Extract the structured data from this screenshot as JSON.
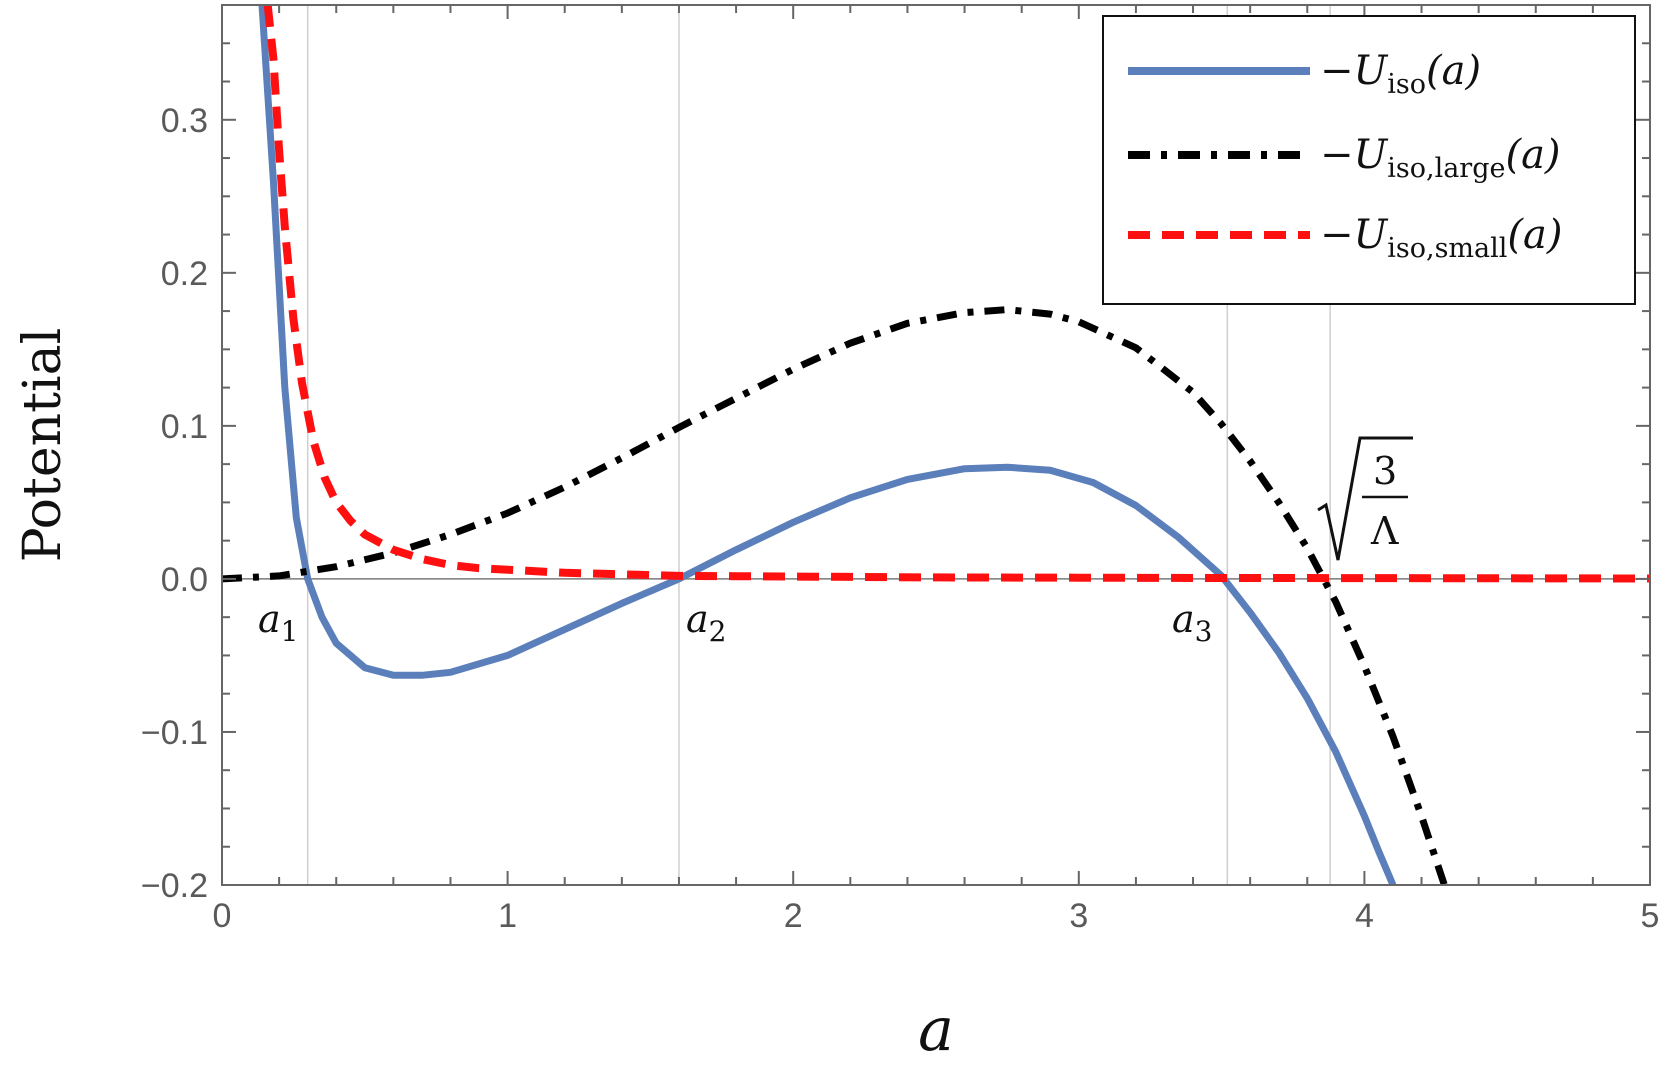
{
  "chart_data": {
    "type": "line",
    "xlabel": "a",
    "ylabel": "Potential",
    "xlim": [
      0,
      5
    ],
    "ylim": [
      -0.2,
      0.375
    ],
    "x_ticks": [
      "0",
      "1",
      "2",
      "3",
      "4",
      "5"
    ],
    "y_ticks": [
      "−0.2",
      "−0.1",
      "0.0",
      "0.1",
      "0.2",
      "0.3"
    ],
    "legend_position": "top-right",
    "grid": false,
    "series": [
      {
        "name": "U_iso(a)",
        "style": "solid",
        "color": "#5b7fba",
        "x": [
          0.14,
          0.18,
          0.22,
          0.26,
          0.3,
          0.35,
          0.4,
          0.5,
          0.6,
          0.7,
          0.8,
          1.0,
          1.2,
          1.4,
          1.6,
          1.8,
          2.0,
          2.2,
          2.4,
          2.6,
          2.75,
          2.9,
          3.05,
          3.2,
          3.35,
          3.5,
          3.6,
          3.7,
          3.8,
          3.9,
          4.0,
          4.05,
          4.1
        ],
        "y": [
          0.375,
          0.26,
          0.125,
          0.04,
          0.0,
          -0.025,
          -0.042,
          -0.058,
          -0.063,
          -0.063,
          -0.061,
          -0.05,
          -0.033,
          -0.016,
          0.0,
          0.019,
          0.037,
          0.053,
          0.065,
          0.072,
          0.073,
          0.071,
          0.063,
          0.048,
          0.027,
          0.002,
          -0.022,
          -0.048,
          -0.078,
          -0.113,
          -0.155,
          -0.178,
          -0.2
        ]
      },
      {
        "name": "U_iso,large(a)",
        "style": "dashdot",
        "color": "#000000",
        "x": [
          0.0,
          0.2,
          0.4,
          0.6,
          0.8,
          1.0,
          1.2,
          1.4,
          1.6,
          1.8,
          2.0,
          2.2,
          2.4,
          2.6,
          2.75,
          2.9,
          3.0,
          3.2,
          3.4,
          3.5,
          3.6,
          3.7,
          3.8,
          3.9,
          4.0,
          4.1,
          4.2,
          4.28
        ],
        "y": [
          0.0,
          0.002,
          0.008,
          0.017,
          0.029,
          0.043,
          0.06,
          0.079,
          0.099,
          0.118,
          0.137,
          0.154,
          0.167,
          0.174,
          0.176,
          0.173,
          0.168,
          0.151,
          0.122,
          0.101,
          0.077,
          0.05,
          0.02,
          -0.015,
          -0.057,
          -0.103,
          -0.155,
          -0.2
        ]
      },
      {
        "name": "U_iso,small(a)",
        "style": "dashed",
        "color": "#ff1010",
        "x": [
          0.16,
          0.18,
          0.2,
          0.22,
          0.25,
          0.28,
          0.32,
          0.36,
          0.4,
          0.45,
          0.5,
          0.55,
          0.6,
          0.7,
          0.8,
          0.9,
          1.0,
          1.2,
          1.4,
          1.6,
          1.8,
          2.0,
          2.5,
          3.0,
          3.5,
          4.0,
          4.5,
          5.0
        ],
        "y": [
          0.375,
          0.34,
          0.28,
          0.23,
          0.17,
          0.128,
          0.09,
          0.066,
          0.05,
          0.038,
          0.029,
          0.024,
          0.019,
          0.013,
          0.009,
          0.007,
          0.006,
          0.004,
          0.003,
          0.002,
          0.0018,
          0.0015,
          0.001,
          0.0008,
          0.0006,
          0.0005,
          0.0004,
          0.0003
        ]
      }
    ],
    "markers": [
      {
        "label": "a",
        "sub": "1",
        "x": 0.3
      },
      {
        "label": "a",
        "sub": "2",
        "x": 1.6
      },
      {
        "label": "a",
        "sub": "3",
        "x": 3.52
      },
      {
        "label": "√(3/Λ)",
        "x": 3.88
      }
    ],
    "legend": {
      "entries": [
        {
          "prefix": "−",
          "symbol": "U",
          "sub": "iso",
          "arg": "(a)"
        },
        {
          "prefix": "−",
          "symbol": "U",
          "sub": "iso,large",
          "arg": "(a)"
        },
        {
          "prefix": "−",
          "symbol": "U",
          "sub": "iso,small",
          "arg": "(a)"
        }
      ]
    },
    "annotation_sqrt": {
      "numerator": "3",
      "denominator": "Λ"
    }
  }
}
